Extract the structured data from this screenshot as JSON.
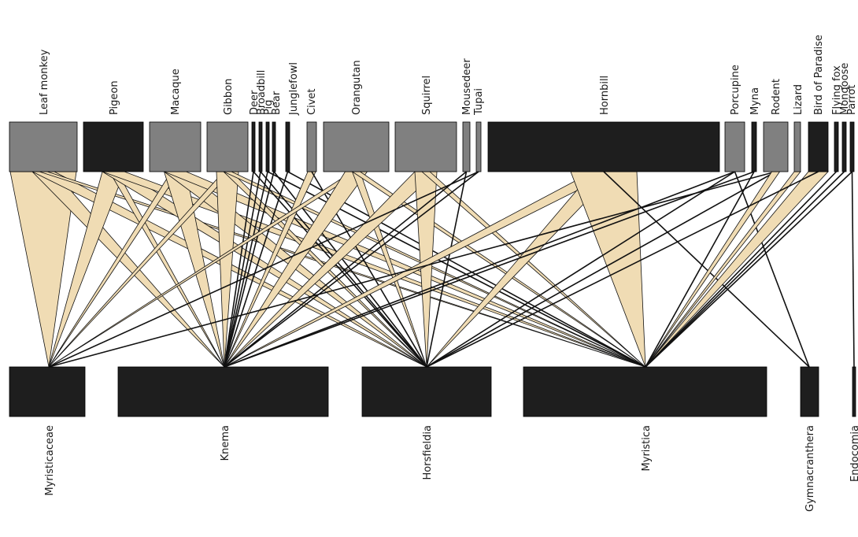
{
  "colors": {
    "background": "#ffffff",
    "dark_box": "#1e1e1e",
    "gray_box": "#808080",
    "wedge_fill": "#f0dcb4",
    "line": "#111111"
  },
  "chart_data": {
    "type": "bipartite-network",
    "title": "",
    "top_nodes": [
      {
        "id": "leaf-monkey",
        "label": "Leaf monkey",
        "shade": "gray"
      },
      {
        "id": "pigeon",
        "label": "Pigeon",
        "shade": "dark"
      },
      {
        "id": "macaque",
        "label": "Macaque",
        "shade": "gray"
      },
      {
        "id": "gibbon",
        "label": "Gibbon",
        "shade": "gray"
      },
      {
        "id": "deer",
        "label": "Deer",
        "shade": "dark"
      },
      {
        "id": "broadbill",
        "label": "Broadbill",
        "shade": "dark"
      },
      {
        "id": "pig",
        "label": "Pig",
        "shade": "dark"
      },
      {
        "id": "bear",
        "label": "Bear",
        "shade": "dark"
      },
      {
        "id": "junglefowl",
        "label": "Junglefowl",
        "shade": "dark"
      },
      {
        "id": "civet",
        "label": "Civet",
        "shade": "gray"
      },
      {
        "id": "orangutan",
        "label": "Orangutan",
        "shade": "gray"
      },
      {
        "id": "squirrel",
        "label": "Squirrel",
        "shade": "gray"
      },
      {
        "id": "mousedeer",
        "label": "Mousedeer",
        "shade": "gray"
      },
      {
        "id": "tupai",
        "label": "Tupai",
        "shade": "gray"
      },
      {
        "id": "hornbill",
        "label": "Hornbill",
        "shade": "dark"
      },
      {
        "id": "porcupine",
        "label": "Porcupine",
        "shade": "gray"
      },
      {
        "id": "myna",
        "label": "Myna",
        "shade": "dark"
      },
      {
        "id": "rodent",
        "label": "Rodent",
        "shade": "gray"
      },
      {
        "id": "lizard",
        "label": "Lizard",
        "shade": "gray"
      },
      {
        "id": "bird-of-paradise",
        "label": "Bird of Paradise",
        "shade": "dark"
      },
      {
        "id": "flying-fox",
        "label": "Flying fox",
        "shade": "dark"
      },
      {
        "id": "mongoose",
        "label": "Mongoose",
        "shade": "dark"
      },
      {
        "id": "parrot",
        "label": "Parrot",
        "shade": "dark"
      }
    ],
    "bottom_nodes": [
      {
        "id": "myristicaceae",
        "label": "Myristicaceae",
        "shade": "dark"
      },
      {
        "id": "knema",
        "label": "Knema",
        "shade": "dark"
      },
      {
        "id": "horsfieldia",
        "label": "Horsfieldia",
        "shade": "dark"
      },
      {
        "id": "myristica",
        "label": "Myristica",
        "shade": "dark"
      },
      {
        "id": "gymnacranthera",
        "label": "Gymnacranthera",
        "shade": "dark"
      },
      {
        "id": "endocomia",
        "label": "Endocomia",
        "shade": "dark"
      }
    ],
    "links": [
      [
        "leaf-monkey",
        "myristicaceae",
        3
      ],
      [
        "leaf-monkey",
        "knema",
        2
      ],
      [
        "leaf-monkey",
        "horsfieldia",
        2
      ],
      [
        "leaf-monkey",
        "myristica",
        1
      ],
      [
        "pigeon",
        "myristicaceae",
        2
      ],
      [
        "pigeon",
        "knema",
        1
      ],
      [
        "pigeon",
        "horsfieldia",
        2
      ],
      [
        "pigeon",
        "myristica",
        2
      ],
      [
        "macaque",
        "myristicaceae",
        1
      ],
      [
        "macaque",
        "knema",
        2
      ],
      [
        "macaque",
        "horsfieldia",
        2
      ],
      [
        "macaque",
        "myristica",
        2
      ],
      [
        "gibbon",
        "myristicaceae",
        1
      ],
      [
        "gibbon",
        "knema",
        2
      ],
      [
        "gibbon",
        "horsfieldia",
        1
      ],
      [
        "gibbon",
        "myristica",
        1
      ],
      [
        "deer",
        "knema",
        0
      ],
      [
        "deer",
        "horsfieldia",
        0
      ],
      [
        "broadbill",
        "knema",
        0
      ],
      [
        "broadbill",
        "horsfieldia",
        0
      ],
      [
        "pig",
        "knema",
        0
      ],
      [
        "pig",
        "myristica",
        0
      ],
      [
        "bear",
        "knema",
        0
      ],
      [
        "bear",
        "horsfieldia",
        0
      ],
      [
        "junglefowl",
        "knema",
        0
      ],
      [
        "junglefowl",
        "myristica",
        0
      ],
      [
        "civet",
        "knema",
        1
      ],
      [
        "civet",
        "horsfieldia",
        0
      ],
      [
        "orangutan",
        "myristicaceae",
        1
      ],
      [
        "orangutan",
        "knema",
        2
      ],
      [
        "orangutan",
        "horsfieldia",
        1
      ],
      [
        "orangutan",
        "myristica",
        1
      ],
      [
        "squirrel",
        "knema",
        2
      ],
      [
        "squirrel",
        "horsfieldia",
        2
      ],
      [
        "squirrel",
        "myristica",
        1
      ],
      [
        "mousedeer",
        "knema",
        0
      ],
      [
        "mousedeer",
        "horsfieldia",
        0
      ],
      [
        "tupai",
        "myristicaceae",
        0
      ],
      [
        "tupai",
        "knema",
        0
      ],
      [
        "hornbill",
        "knema",
        2
      ],
      [
        "hornbill",
        "horsfieldia",
        2
      ],
      [
        "hornbill",
        "myristica",
        3
      ],
      [
        "hornbill",
        "gymnacranthera",
        0
      ],
      [
        "porcupine",
        "knema",
        0
      ],
      [
        "porcupine",
        "horsfieldia",
        0
      ],
      [
        "porcupine",
        "gymnacranthera",
        0
      ],
      [
        "myna",
        "myristica",
        0
      ],
      [
        "myna",
        "knema",
        0
      ],
      [
        "rodent",
        "myristicaceae",
        0
      ],
      [
        "rodent",
        "horsfieldia",
        0
      ],
      [
        "rodent",
        "myristica",
        1
      ],
      [
        "lizard",
        "myristica",
        1
      ],
      [
        "bird-of-paradise",
        "myristica",
        2
      ],
      [
        "bird-of-paradise",
        "horsfieldia",
        0
      ],
      [
        "flying-fox",
        "myristica",
        0
      ],
      [
        "mongoose",
        "myristica",
        0
      ],
      [
        "parrot",
        "myristica",
        0
      ],
      [
        "parrot",
        "endocomia",
        0
      ]
    ]
  }
}
